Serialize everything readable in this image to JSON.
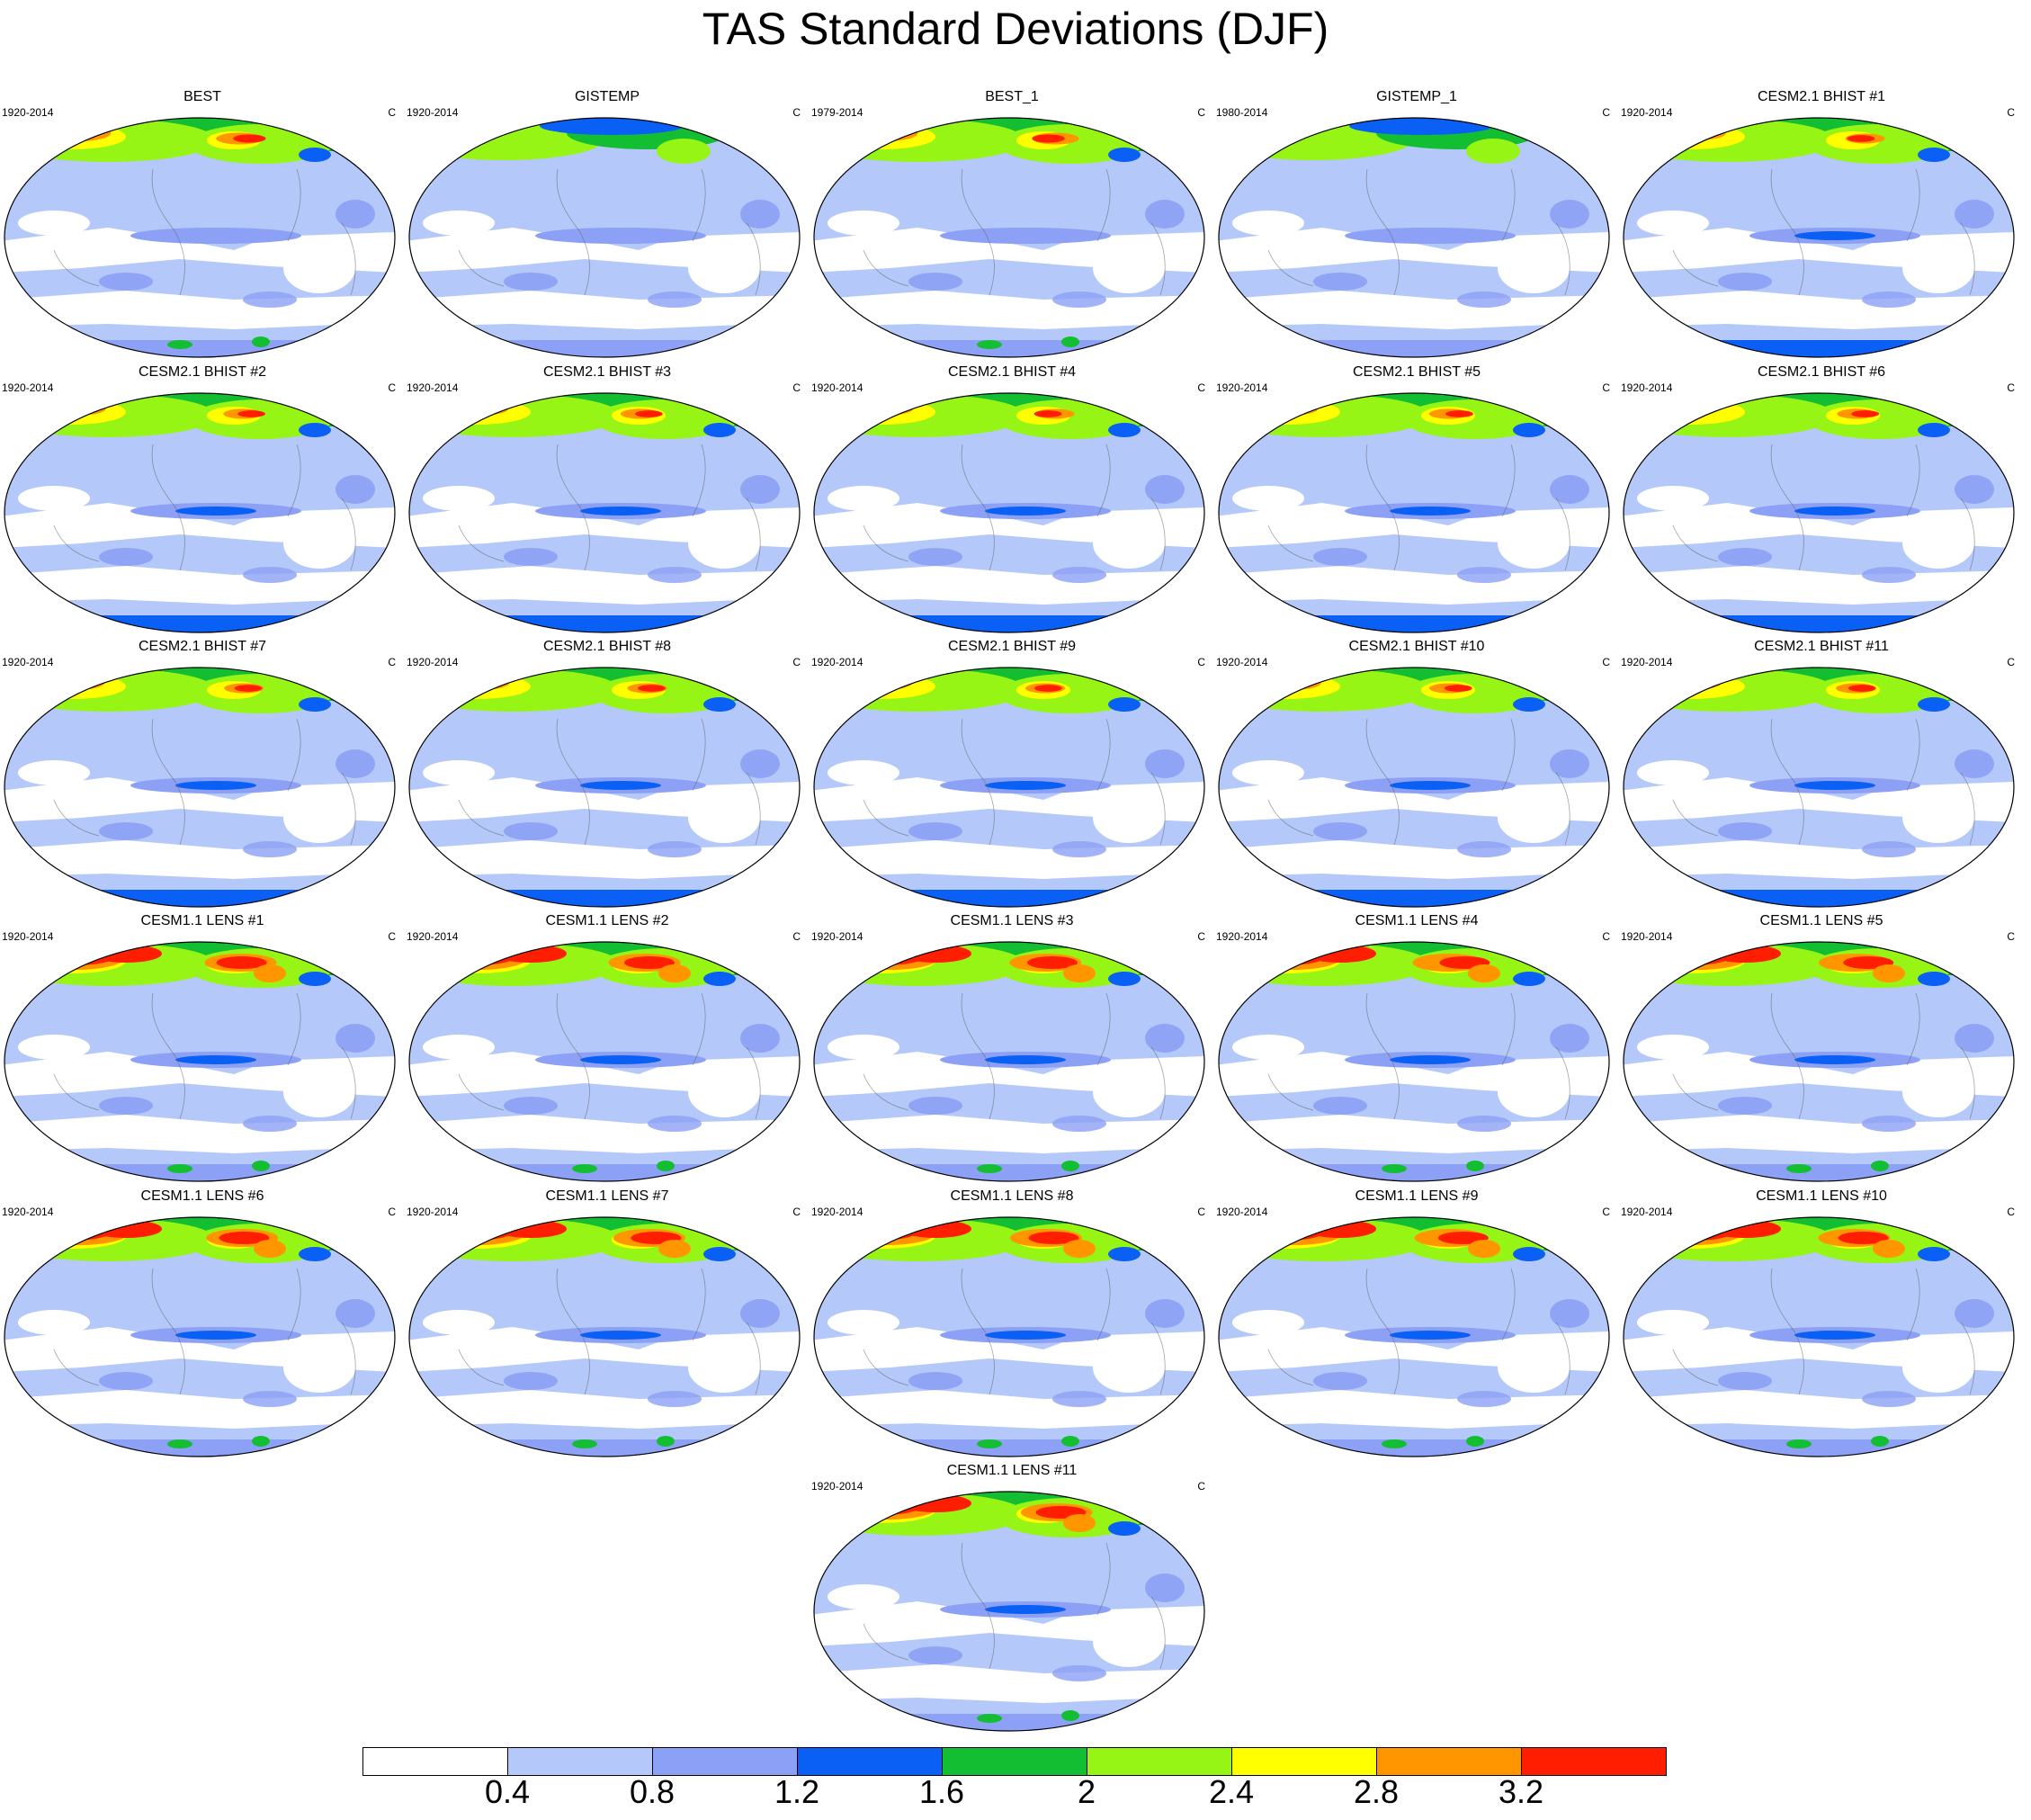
{
  "title": "TAS Standard Deviations (DJF)",
  "units": "C",
  "panels": [
    {
      "title": "BEST",
      "period": "1920-2014",
      "pattern": "obs"
    },
    {
      "title": "GISTEMP",
      "period": "1920-2014",
      "pattern": "obs-smooth"
    },
    {
      "title": "BEST_1",
      "period": "1979-2014",
      "pattern": "obs"
    },
    {
      "title": "GISTEMP_1",
      "period": "1980-2014",
      "pattern": "obs-smooth"
    },
    {
      "title": "CESM2.1 BHIST #1",
      "period": "1920-2014",
      "pattern": "cesm2"
    },
    {
      "title": "CESM2.1 BHIST #2",
      "period": "1920-2014",
      "pattern": "cesm2"
    },
    {
      "title": "CESM2.1 BHIST #3",
      "period": "1920-2014",
      "pattern": "cesm2"
    },
    {
      "title": "CESM2.1 BHIST #4",
      "period": "1920-2014",
      "pattern": "cesm2"
    },
    {
      "title": "CESM2.1 BHIST #5",
      "period": "1920-2014",
      "pattern": "cesm2"
    },
    {
      "title": "CESM2.1 BHIST #6",
      "period": "1920-2014",
      "pattern": "cesm2"
    },
    {
      "title": "CESM2.1 BHIST #7",
      "period": "1920-2014",
      "pattern": "cesm2"
    },
    {
      "title": "CESM2.1 BHIST #8",
      "period": "1920-2014",
      "pattern": "cesm2"
    },
    {
      "title": "CESM2.1 BHIST #9",
      "period": "1920-2014",
      "pattern": "cesm2"
    },
    {
      "title": "CESM2.1 BHIST #10",
      "period": "1920-2014",
      "pattern": "cesm2"
    },
    {
      "title": "CESM2.1 BHIST #11",
      "period": "1920-2014",
      "pattern": "cesm2"
    },
    {
      "title": "CESM1.1 LENS #1",
      "period": "1920-2014",
      "pattern": "lens"
    },
    {
      "title": "CESM1.1 LENS #2",
      "period": "1920-2014",
      "pattern": "lens"
    },
    {
      "title": "CESM1.1 LENS #3",
      "period": "1920-2014",
      "pattern": "lens"
    },
    {
      "title": "CESM1.1 LENS #4",
      "period": "1920-2014",
      "pattern": "lens"
    },
    {
      "title": "CESM1.1 LENS #5",
      "period": "1920-2014",
      "pattern": "lens"
    },
    {
      "title": "CESM1.1 LENS #6",
      "period": "1920-2014",
      "pattern": "lens"
    },
    {
      "title": "CESM1.1 LENS #7",
      "period": "1920-2014",
      "pattern": "lens"
    },
    {
      "title": "CESM1.1 LENS #8",
      "period": "1920-2014",
      "pattern": "lens"
    },
    {
      "title": "CESM1.1 LENS #9",
      "period": "1920-2014",
      "pattern": "lens"
    },
    {
      "title": "CESM1.1 LENS #10",
      "period": "1920-2014",
      "pattern": "lens"
    },
    {
      "title": "CESM1.1 LENS #11",
      "period": "1920-2014",
      "pattern": "lens"
    }
  ],
  "colorbar": {
    "colors": [
      "#ffffff",
      "#b4c8fa",
      "#8ca0f5",
      "#0a5ff5",
      "#14be32",
      "#96f514",
      "#ffff00",
      "#ff9600",
      "#ff1e00"
    ],
    "labels": [
      "0.4",
      "0.8",
      "1.2",
      "1.6",
      "2",
      "2.4",
      "2.8",
      "3.2"
    ]
  }
}
